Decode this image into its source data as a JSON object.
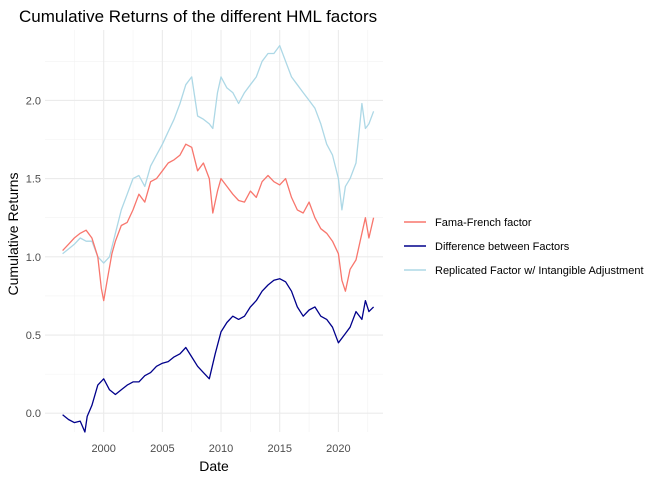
{
  "chart_data": {
    "type": "line",
    "title": "Cumulative Returns of the different HML factors",
    "xlabel": "Date",
    "ylabel": "Cumulative Returns",
    "xlim": [
      1995.0,
      2023.8
    ],
    "ylim": [
      -0.12,
      2.45
    ],
    "x_ticks": [
      2000,
      2005,
      2010,
      2015,
      2020
    ],
    "x_tick_labels": [
      "2000",
      "2005",
      "2010",
      "2015",
      "2020"
    ],
    "y_ticks": [
      0.0,
      0.5,
      1.0,
      1.5,
      2.0
    ],
    "y_tick_labels": [
      "0.0",
      "0.5",
      "1.0",
      "1.5",
      "2.0"
    ],
    "grid": true,
    "legend_position": "right",
    "series": [
      {
        "name": "Fama-French factor",
        "color": "#F8766D",
        "x": [
          1996.5,
          1997.0,
          1997.5,
          1998.0,
          1998.5,
          1999.0,
          1999.5,
          1999.8,
          2000.0,
          2000.3,
          2000.7,
          2001.0,
          2001.5,
          2002.0,
          2002.5,
          2003.0,
          2003.5,
          2004.0,
          2004.5,
          2005.0,
          2005.5,
          2006.0,
          2006.5,
          2007.0,
          2007.5,
          2008.0,
          2008.5,
          2009.0,
          2009.3,
          2009.7,
          2010.0,
          2010.5,
          2011.0,
          2011.5,
          2012.0,
          2012.5,
          2013.0,
          2013.5,
          2014.0,
          2014.5,
          2015.0,
          2015.5,
          2016.0,
          2016.5,
          2017.0,
          2017.5,
          2018.0,
          2018.5,
          2019.0,
          2019.5,
          2020.0,
          2020.3,
          2020.6,
          2021.0,
          2021.5,
          2022.0,
          2022.3,
          2022.6,
          2023.0
        ],
        "values": [
          1.04,
          1.08,
          1.12,
          1.15,
          1.17,
          1.12,
          1.0,
          0.8,
          0.72,
          0.85,
          1.02,
          1.1,
          1.2,
          1.22,
          1.3,
          1.4,
          1.35,
          1.48,
          1.5,
          1.55,
          1.6,
          1.62,
          1.65,
          1.72,
          1.7,
          1.55,
          1.6,
          1.5,
          1.28,
          1.42,
          1.5,
          1.45,
          1.4,
          1.36,
          1.35,
          1.42,
          1.38,
          1.48,
          1.52,
          1.48,
          1.46,
          1.5,
          1.38,
          1.3,
          1.28,
          1.35,
          1.25,
          1.18,
          1.15,
          1.1,
          1.02,
          0.85,
          0.78,
          0.92,
          0.98,
          1.15,
          1.25,
          1.12,
          1.25
        ]
      },
      {
        "name": "Difference between Factors",
        "color": "#00008B",
        "x": [
          1996.5,
          1997.0,
          1997.5,
          1998.0,
          1998.4,
          1998.6,
          1999.0,
          1999.5,
          2000.0,
          2000.5,
          2001.0,
          2001.5,
          2002.0,
          2002.5,
          2003.0,
          2003.5,
          2004.0,
          2004.5,
          2005.0,
          2005.5,
          2006.0,
          2006.5,
          2007.0,
          2007.5,
          2008.0,
          2008.5,
          2009.0,
          2009.5,
          2010.0,
          2010.5,
          2011.0,
          2011.5,
          2012.0,
          2012.5,
          2013.0,
          2013.5,
          2014.0,
          2014.5,
          2015.0,
          2015.5,
          2016.0,
          2016.5,
          2017.0,
          2017.5,
          2018.0,
          2018.5,
          2019.0,
          2019.5,
          2020.0,
          2020.5,
          2021.0,
          2021.5,
          2022.0,
          2022.3,
          2022.6,
          2023.0
        ],
        "values": [
          -0.01,
          -0.04,
          -0.06,
          -0.05,
          -0.12,
          -0.02,
          0.05,
          0.18,
          0.22,
          0.15,
          0.12,
          0.15,
          0.18,
          0.2,
          0.2,
          0.24,
          0.26,
          0.3,
          0.32,
          0.33,
          0.36,
          0.38,
          0.42,
          0.36,
          0.3,
          0.26,
          0.22,
          0.38,
          0.52,
          0.58,
          0.62,
          0.6,
          0.62,
          0.68,
          0.72,
          0.78,
          0.82,
          0.85,
          0.86,
          0.84,
          0.78,
          0.68,
          0.62,
          0.66,
          0.68,
          0.62,
          0.6,
          0.55,
          0.45,
          0.5,
          0.55,
          0.65,
          0.6,
          0.72,
          0.65,
          0.68
        ]
      },
      {
        "name": "Replicated Factor w/ Intangible Adjustment",
        "color": "#ADD8E6",
        "x": [
          1996.5,
          1997.0,
          1997.5,
          1998.0,
          1998.5,
          1999.0,
          1999.5,
          2000.0,
          2000.5,
          2001.0,
          2001.5,
          2002.0,
          2002.5,
          2003.0,
          2003.5,
          2004.0,
          2004.5,
          2005.0,
          2005.5,
          2006.0,
          2006.5,
          2007.0,
          2007.5,
          2008.0,
          2008.5,
          2009.0,
          2009.3,
          2009.7,
          2010.0,
          2010.5,
          2011.0,
          2011.5,
          2012.0,
          2012.5,
          2013.0,
          2013.5,
          2014.0,
          2014.5,
          2015.0,
          2015.5,
          2016.0,
          2016.5,
          2017.0,
          2017.5,
          2018.0,
          2018.5,
          2019.0,
          2019.5,
          2020.0,
          2020.3,
          2020.6,
          2021.0,
          2021.5,
          2022.0,
          2022.3,
          2022.6,
          2023.0
        ],
        "values": [
          1.02,
          1.05,
          1.08,
          1.12,
          1.1,
          1.1,
          1.0,
          0.96,
          1.0,
          1.15,
          1.3,
          1.4,
          1.5,
          1.52,
          1.45,
          1.58,
          1.65,
          1.72,
          1.8,
          1.88,
          1.98,
          2.1,
          2.15,
          1.9,
          1.88,
          1.85,
          1.82,
          2.05,
          2.15,
          2.08,
          2.05,
          1.98,
          2.05,
          2.1,
          2.15,
          2.25,
          2.3,
          2.3,
          2.35,
          2.25,
          2.15,
          2.1,
          2.05,
          2.0,
          1.95,
          1.85,
          1.72,
          1.65,
          1.5,
          1.3,
          1.45,
          1.5,
          1.6,
          1.98,
          1.82,
          1.85,
          1.93
        ]
      }
    ]
  }
}
